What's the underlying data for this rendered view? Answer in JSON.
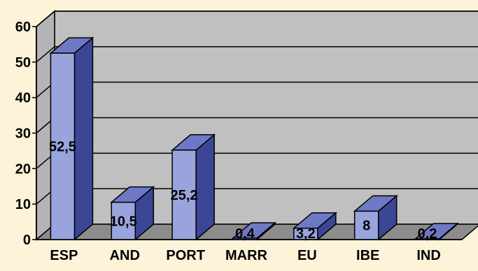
{
  "chart_data": {
    "type": "bar",
    "categories": [
      "ESP",
      "AND",
      "PORT",
      "MARR",
      "EU",
      "IBE",
      "IND"
    ],
    "values": [
      52.5,
      10.5,
      25.2,
      0.4,
      3.2,
      8,
      0.2
    ],
    "data_labels": [
      "52,5",
      "10,5",
      "25,2",
      "0,4",
      "3,2",
      "8",
      "0,2"
    ],
    "yticks": [
      "0",
      "10",
      "20",
      "30",
      "40",
      "50",
      "60"
    ],
    "ylim": [
      0,
      60
    ],
    "grid": true,
    "legend": "none",
    "projection": "3d"
  },
  "colors": {
    "background": "#fdf3d9",
    "wall": "#c0c0c0",
    "floor": "#8c8c8c",
    "bar_front": "#9aa4dc",
    "bar_top": "#6e79c6",
    "bar_side": "#3c4696"
  }
}
